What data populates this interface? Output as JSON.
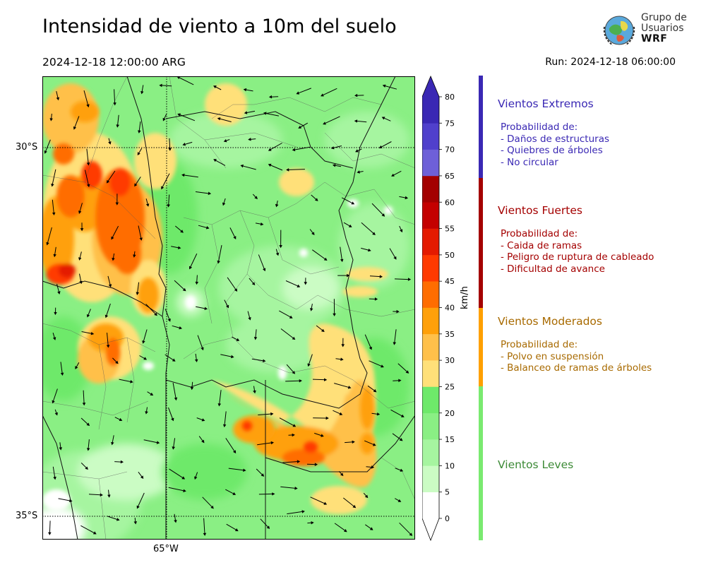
{
  "header": {
    "title": "Intensidad de viento a 10m del suelo",
    "valid_time": "2024-12-18 12:00:00 ARG",
    "run_time": "Run: 2024-12-18 06:00:00"
  },
  "logo": {
    "line1": "Grupo de",
    "line2": "Usuarios",
    "line3": "WRF"
  },
  "map": {
    "lat_labels": [
      "30°S",
      "35°S"
    ],
    "lon_labels": [
      "65°W"
    ],
    "graticule": "dotted"
  },
  "colorbar": {
    "units": "km/h",
    "ticks": [
      "0",
      "5",
      "10",
      "15",
      "20",
      "25",
      "30",
      "35",
      "40",
      "45",
      "50",
      "55",
      "60",
      "65",
      "70",
      "75",
      "80"
    ],
    "colors": [
      "#ffffff",
      "#cbfcc4",
      "#a6f5a0",
      "#8aef84",
      "#6ee96a",
      "#ffe079",
      "#ffc04a",
      "#ffa00a",
      "#ff6d00",
      "#ff3a00",
      "#e41a00",
      "#c40000",
      "#a30000",
      "#6e60d8",
      "#5040cc",
      "#3a28b4"
    ],
    "extend": "both",
    "over_color": "#3a28b4"
  },
  "categories": [
    {
      "heading": "Vientos Extremos",
      "color": "#3a28b4",
      "bar_color": "#3a28b4",
      "intro": "Probabilidad de:",
      "items": [
        "- Daños de estructuras",
        "- Quiebres de árboles",
        "- No circular"
      ]
    },
    {
      "heading": "Vientos Fuertes",
      "color": "#a40000",
      "bar_color": "#a40000",
      "intro": "Probabilidad de:",
      "items": [
        "- Caida de ramas",
        "- Peligro de ruptura de cableado",
        "- Dificultad de avance"
      ]
    },
    {
      "heading": "Vientos Moderados",
      "color": "#a86a00",
      "bar_color": "#ffa000",
      "intro": "Probabilidad de:",
      "items": [
        "- Polvo en suspensión",
        "- Balanceo de ramas de árboles"
      ]
    },
    {
      "heading": "Vientos Leves",
      "color": "#3c8a36",
      "bar_color": "#7aea70",
      "intro": "",
      "items": []
    }
  ]
}
